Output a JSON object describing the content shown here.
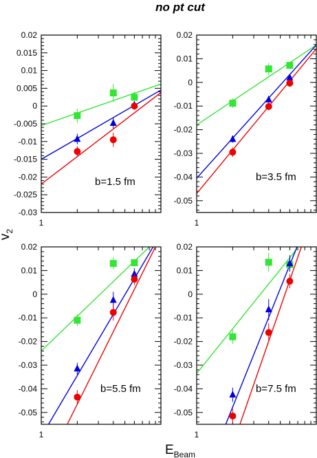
{
  "title": "no pt cut",
  "y_axis_title": "v",
  "y_axis_sub": "2",
  "x_axis_title": "E",
  "x_axis_sub": "Beam",
  "colors": {
    "green": "#33e633",
    "blue": "#0000dd",
    "red": "#ee0000"
  },
  "chart_data": [
    {
      "type": "scatter",
      "panel": "top-left",
      "annotation": "b=1.5 fm",
      "x_scale": "log",
      "xlim": [
        1,
        10
      ],
      "x_tick_labels": [
        "1"
      ],
      "ylim": [
        -0.03,
        0.02
      ],
      "yticks": [
        -0.03,
        -0.025,
        -0.02,
        -0.015,
        -0.01,
        -0.005,
        0,
        0.005,
        0.01,
        0.015,
        0.02
      ],
      "y_tick_labels": [
        "-0.03",
        "-0.025",
        "-0.02",
        "-0.015",
        "-0.01",
        "-0.005",
        "0",
        "0.005",
        "0.01",
        "0.015",
        "0.02"
      ],
      "series": [
        {
          "color": "green",
          "marker": "square",
          "x": [
            2,
            4,
            6
          ],
          "y": [
            -0.0027,
            0.0037,
            0.0025
          ],
          "err": [
            0.002,
            0.0025,
            0.0015
          ],
          "fit": [
            [
              1,
              -0.0055
            ],
            [
              10,
              0.0062
            ]
          ]
        },
        {
          "color": "blue",
          "marker": "triangle",
          "x": [
            2,
            4,
            6
          ],
          "y": [
            -0.0093,
            -0.0048,
            0.0003
          ],
          "err": [
            0.0015,
            0.0015,
            0.001
          ],
          "fit": [
            [
              1,
              -0.015
            ],
            [
              10,
              0.0045
            ]
          ]
        },
        {
          "color": "red",
          "marker": "circle",
          "x": [
            2,
            4,
            6
          ],
          "y": [
            -0.0128,
            -0.0095,
            0.0
          ],
          "err": [
            0.0015,
            0.002,
            0.001
          ],
          "fit": [
            [
              1,
              -0.022
            ],
            [
              10,
              0.0038
            ]
          ]
        }
      ]
    },
    {
      "type": "scatter",
      "panel": "top-right",
      "annotation": "b=3.5 fm",
      "x_scale": "log",
      "xlim": [
        1,
        10
      ],
      "x_tick_labels": [
        "1"
      ],
      "ylim": [
        -0.055,
        0.02
      ],
      "yticks": [
        -0.05,
        -0.04,
        -0.03,
        -0.02,
        -0.01,
        0,
        0.01,
        0.02
      ],
      "y_tick_labels": [
        "-0.05",
        "-0.04",
        "-0.03",
        "-0.02",
        "-0.01",
        "0",
        "0.01",
        "0.02"
      ],
      "series": [
        {
          "color": "green",
          "marker": "square",
          "x": [
            2,
            4,
            6
          ],
          "y": [
            -0.0088,
            0.0057,
            0.0072
          ],
          "err": [
            0.002,
            0.0025,
            0.0015
          ],
          "fit": [
            [
              1,
              -0.018
            ],
            [
              10,
              0.0158
            ]
          ]
        },
        {
          "color": "blue",
          "marker": "triangle",
          "x": [
            2,
            4,
            6
          ],
          "y": [
            -0.024,
            -0.0073,
            0.002
          ],
          "err": [
            0.0015,
            0.0015,
            0.0015
          ],
          "fit": [
            [
              1,
              -0.0405
            ],
            [
              10,
              0.0158
            ]
          ]
        },
        {
          "color": "red",
          "marker": "circle",
          "x": [
            2,
            4,
            6
          ],
          "y": [
            -0.0295,
            -0.0102,
            -0.0003
          ],
          "err": [
            0.002,
            0.0015,
            0.0015
          ],
          "fit": [
            [
              1,
              -0.047
            ],
            [
              10,
              0.0142
            ]
          ]
        }
      ]
    },
    {
      "type": "scatter",
      "panel": "bottom-left",
      "annotation": "b=5.5 fm",
      "x_scale": "log",
      "xlim": [
        1,
        10
      ],
      "x_tick_labels": [
        "1"
      ],
      "ylim": [
        -0.055,
        0.02
      ],
      "yticks": [
        -0.05,
        -0.04,
        -0.03,
        -0.02,
        -0.01,
        0,
        0.01,
        0.02
      ],
      "y_tick_labels": [
        "-0.05",
        "-0.04",
        "-0.03",
        "-0.02",
        "-0.01",
        "0",
        "0.01",
        "0.02"
      ],
      "series": [
        {
          "color": "green",
          "marker": "square",
          "x": [
            2,
            4,
            6
          ],
          "y": [
            -0.011,
            0.013,
            0.0133
          ],
          "err": [
            0.0025,
            0.0025,
            0.0015
          ],
          "fit": [
            [
              1,
              -0.024
            ],
            [
              8,
              0.02
            ]
          ]
        },
        {
          "color": "blue",
          "marker": "triangle",
          "x": [
            2,
            4,
            6
          ],
          "y": [
            -0.0315,
            -0.0025,
            0.0085
          ],
          "err": [
            0.0025,
            0.0035,
            0.0025
          ],
          "fit": [
            [
              1.15,
              -0.055
            ],
            [
              8.6,
              0.02
            ]
          ]
        },
        {
          "color": "red",
          "marker": "circle",
          "x": [
            2,
            4,
            6
          ],
          "y": [
            -0.0435,
            -0.0077,
            0.0063
          ],
          "err": [
            0.003,
            0.0035,
            0.0025
          ],
          "fit": [
            [
              1.65,
              -0.055
            ],
            [
              9,
              0.02
            ]
          ]
        }
      ]
    },
    {
      "type": "scatter",
      "panel": "bottom-right",
      "annotation": "b=7.5 fm",
      "x_scale": "log",
      "xlim": [
        1,
        10
      ],
      "x_tick_labels": [
        "1"
      ],
      "ylim": [
        -0.055,
        0.02
      ],
      "yticks": [
        -0.05,
        -0.04,
        -0.03,
        -0.02,
        -0.01,
        0,
        0.01,
        0.02
      ],
      "y_tick_labels": [
        "-0.05",
        "-0.04",
        "-0.03",
        "-0.02",
        "-0.01",
        "0",
        "0.01",
        "0.02"
      ],
      "series": [
        {
          "color": "green",
          "marker": "square",
          "x": [
            2,
            4,
            6
          ],
          "y": [
            -0.018,
            0.0135,
            0.0125
          ],
          "err": [
            0.003,
            0.004,
            0.003
          ],
          "fit": [
            [
              1,
              -0.0335
            ],
            [
              7.1,
              0.02
            ]
          ]
        },
        {
          "color": "blue",
          "marker": "triangle",
          "x": [
            2,
            4,
            6
          ],
          "y": [
            -0.0425,
            -0.0065,
            0.013
          ],
          "err": [
            0.003,
            0.0045,
            0.0035
          ],
          "fit": [
            [
              1.75,
              -0.055
            ],
            [
              6.9,
              0.02
            ]
          ]
        },
        {
          "color": "red",
          "marker": "circle",
          "x": [
            2,
            4,
            6
          ],
          "y": [
            -0.0515,
            -0.0162,
            0.0055
          ],
          "err": [
            0.003,
            0.004,
            0.003
          ],
          "fit": [
            [
              2.3,
              -0.055
            ],
            [
              7.5,
              0.02
            ]
          ]
        }
      ]
    }
  ]
}
